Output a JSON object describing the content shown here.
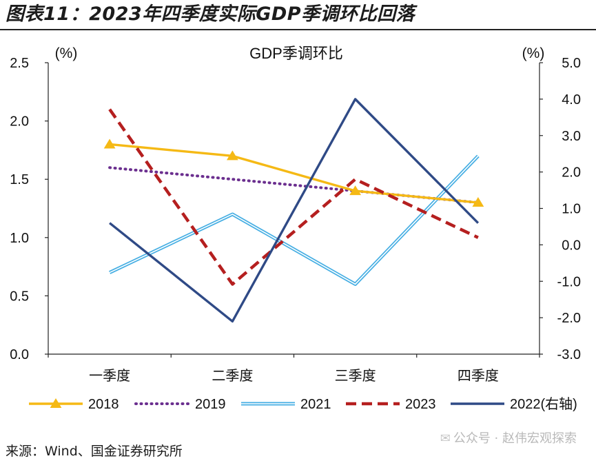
{
  "figure_title": "图表11：2023年四季度实际GDP季调环比回落",
  "source": "来源：Wind、国金证券研究所",
  "watermark": "公众号 · 赵伟宏观探索",
  "colors": {
    "2018": "#F5B915",
    "2019": "#6B2F8F",
    "2021": "#45AEE3",
    "2023": "#B51F1F",
    "2022": "#2F4A86"
  },
  "chart_data": {
    "type": "line",
    "title": "GDP季调环比",
    "categories": [
      "一季度",
      "二季度",
      "三季度",
      "四季度"
    ],
    "left_axis": {
      "unit_label": "(%)",
      "range": [
        0.0,
        2.5
      ],
      "ticks": [
        "0.0",
        "0.5",
        "1.0",
        "1.5",
        "2.0",
        "2.5"
      ]
    },
    "right_axis": {
      "unit_label": "(%)",
      "range": [
        -3.0,
        5.0
      ],
      "ticks": [
        "-3.0",
        "-2.0",
        "-1.0",
        "0.0",
        "1.0",
        "2.0",
        "3.0",
        "4.0",
        "5.0"
      ]
    },
    "grid": false,
    "legend_position": "bottom",
    "series": [
      {
        "name": "2018",
        "axis": "left",
        "style": "solid-triangle",
        "values": [
          1.8,
          1.7,
          1.4,
          1.3
        ]
      },
      {
        "name": "2019",
        "axis": "left",
        "style": "dotted",
        "values": [
          1.6,
          1.5,
          1.4,
          1.3
        ]
      },
      {
        "name": "2021",
        "axis": "left",
        "style": "double-line",
        "values": [
          0.7,
          1.2,
          0.6,
          1.7
        ]
      },
      {
        "name": "2023",
        "axis": "left",
        "style": "dashed",
        "values": [
          2.1,
          0.6,
          1.5,
          1.0
        ]
      },
      {
        "name": "2022(右轴)",
        "axis": "right",
        "style": "solid",
        "values": [
          0.6,
          -2.1,
          4.0,
          0.6
        ]
      }
    ]
  }
}
